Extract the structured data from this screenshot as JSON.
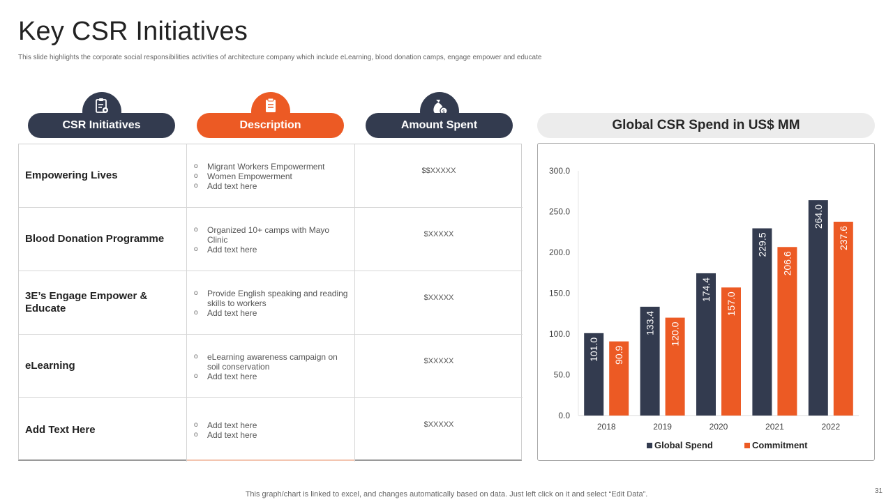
{
  "title": "Key CSR Initiatives",
  "subtitle": "This slide highlights the corporate social responsibilities activities of architecture company which include eLearning, blood donation camps, engage empower and educate",
  "headers": {
    "initiatives": {
      "label": "CSR Initiatives",
      "icon": "clipboard-gear-icon"
    },
    "description": {
      "label": "Description",
      "icon": "document-icon"
    },
    "amount": {
      "label": "Amount Spent",
      "icon": "money-bag-icon"
    }
  },
  "rows": [
    {
      "name": "Empowering Lives",
      "bullets": [
        "Migrant Workers Empowerment",
        "Women Empowerment",
        "Add text here"
      ],
      "amount": "$$XXXXX"
    },
    {
      "name": "Blood Donation Programme",
      "bullets": [
        "Organized 10+ camps with Mayo Clinic",
        "Add text here"
      ],
      "amount": "$XXXXX"
    },
    {
      "name": "3E’s Engage Empower & Educate",
      "bullets": [
        "Provide English speaking and reading skills to workers",
        "Add text here"
      ],
      "amount": "$XXXXX"
    },
    {
      "name": "eLearning",
      "bullets": [
        "eLearning awareness campaign on soil conservation",
        "Add text here"
      ],
      "amount": "$XXXXX"
    },
    {
      "name": "Add Text Here",
      "bullets": [
        "Add text here",
        "Add text here"
      ],
      "amount": "$XXXXX"
    }
  ],
  "bullet_symbol": "o",
  "colors": {
    "navy": "#333b4f",
    "orange": "#ec5a24"
  },
  "chart_data": {
    "type": "bar",
    "title": "Global CSR Spend in US$ MM",
    "categories": [
      "2018",
      "2019",
      "2020",
      "2021",
      "2022"
    ],
    "series": [
      {
        "name": "Global Spend",
        "values": [
          101.0,
          133.4,
          174.4,
          229.5,
          264.0
        ],
        "color": "#333b4f"
      },
      {
        "name": "Commitment",
        "values": [
          90.9,
          120.0,
          157.0,
          206.6,
          237.6
        ],
        "color": "#ec5a24"
      }
    ],
    "yticks": [
      "0.0",
      "50.0",
      "100.0",
      "150.0",
      "200.0",
      "250.0",
      "300.0"
    ],
    "ylim": [
      0,
      300
    ],
    "grid": false,
    "legend": "bottom"
  },
  "footer": "This graph/chart is linked to excel,  and changes automatically based on data. Just left click on it and select “Edit Data”.",
  "page_number": "31"
}
